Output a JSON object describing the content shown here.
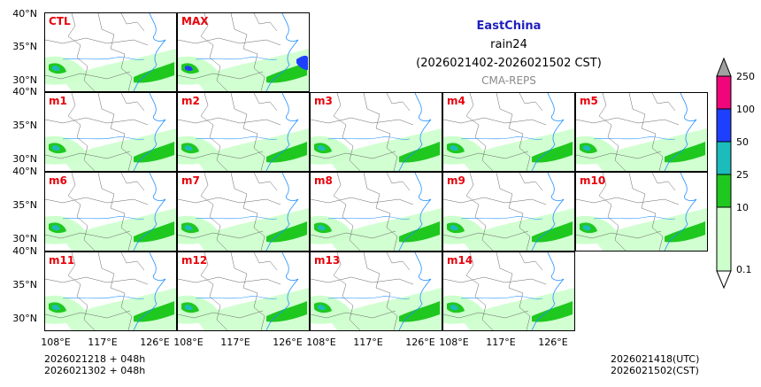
{
  "title": {
    "region": "EastChina",
    "variable": "rain24",
    "period": "(2026021402-2026021502 CST)",
    "system": "CMA-REPS"
  },
  "panels": [
    "CTL",
    "MAX",
    "m1",
    "m2",
    "m3",
    "m4",
    "m5",
    "m6",
    "m7",
    "m8",
    "m9",
    "m10",
    "m11",
    "m12",
    "m13",
    "m14"
  ],
  "axes": {
    "lat_labels": [
      "40°N",
      "35°N",
      "30°N"
    ],
    "lon_labels": [
      "108°E",
      "117°E",
      "126°E"
    ]
  },
  "colorbar": {
    "levels": [
      "0.1",
      "10",
      "25",
      "50",
      "100",
      "250"
    ],
    "colors": [
      "#ccffcc",
      "#1fc81f",
      "#1cbcbc",
      "#1f3fff",
      "#f0067a",
      "#a0a0a0"
    ]
  },
  "footer": {
    "left_line1": "2026021218  +  048h",
    "left_line2": "2026021302  +  048h",
    "right_line1": "2026021418(UTC)",
    "right_line2": "2026021502(CST)"
  }
}
